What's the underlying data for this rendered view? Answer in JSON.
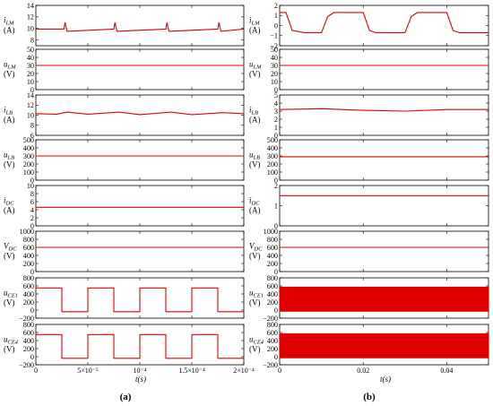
{
  "colors": {
    "signal": "#e00000",
    "axis": "#000000",
    "background": "#ffffff"
  },
  "panels": {
    "a": {
      "label": "(a)",
      "xlabel": "t(s)",
      "xticks": [
        "0",
        "5×10⁻⁵",
        "10⁻⁴",
        "1.5×10⁻⁴",
        "2×10⁻⁴"
      ]
    },
    "b": {
      "label": "(b)",
      "xlabel": "t(s)",
      "xticks": [
        "0",
        "0.02",
        "0.04"
      ]
    }
  },
  "chart_data": [
    {
      "type": "line",
      "panel": "a",
      "row": 0,
      "ylabel": "iLM",
      "yunit": "(A)",
      "ylim": [
        7,
        14
      ],
      "yticks": [
        8,
        10,
        12,
        14
      ],
      "xlim": [
        0,
        0.0002
      ],
      "series": [
        {
          "description_value": 9.9,
          "values": [
            [
              0,
              9.9
            ],
            [
              2.7e-05,
              9.9
            ],
            [
              2.8e-05,
              11.0
            ],
            [
              3e-05,
              9.5
            ],
            [
              7.5e-05,
              9.9
            ],
            [
              7.6e-05,
              11.0
            ],
            [
              7.8e-05,
              9.5
            ],
            [
              0.000125,
              9.9
            ],
            [
              0.000126,
              11.0
            ],
            [
              0.000128,
              9.5
            ],
            [
              0.000175,
              9.9
            ],
            [
              0.000176,
              11.0
            ],
            [
              0.000178,
              9.5
            ],
            [
              0.0002,
              9.9
            ]
          ]
        }
      ]
    },
    {
      "type": "line",
      "panel": "a",
      "row": 1,
      "ylabel": "uLM",
      "yunit": "(V)",
      "ylim": [
        0,
        50
      ],
      "yticks": [
        0,
        10,
        20,
        30,
        40,
        50
      ],
      "xlim": [
        0,
        0.0002
      ],
      "series": [
        {
          "values": [
            [
              0,
              30
            ],
            [
              0.0002,
              30
            ]
          ]
        }
      ]
    },
    {
      "type": "line",
      "panel": "a",
      "row": 2,
      "ylabel": "iLB",
      "yunit": "(A)",
      "ylim": [
        6,
        14
      ],
      "yticks": [
        6,
        8,
        10,
        12,
        14
      ],
      "xlim": [
        0,
        0.0002
      ],
      "series": [
        {
          "values": [
            [
              0,
              10.3
            ],
            [
              2e-05,
              10.2
            ],
            [
              3e-05,
              10.6
            ],
            [
              5e-05,
              10.2
            ],
            [
              8e-05,
              10.6
            ],
            [
              0.0001,
              10.1
            ],
            [
              0.00013,
              10.6
            ],
            [
              0.00015,
              10.1
            ],
            [
              0.00018,
              10.5
            ],
            [
              0.0002,
              10.3
            ]
          ]
        }
      ]
    },
    {
      "type": "line",
      "panel": "a",
      "row": 3,
      "ylabel": "uLB",
      "yunit": "(V)",
      "ylim": [
        0,
        500
      ],
      "yticks": [
        0,
        100,
        200,
        300,
        400,
        500
      ],
      "xlim": [
        0,
        0.0002
      ],
      "series": [
        {
          "values": [
            [
              0,
              300
            ],
            [
              0.0002,
              300
            ]
          ]
        }
      ]
    },
    {
      "type": "line",
      "panel": "a",
      "row": 4,
      "ylabel": "iDC",
      "yunit": "(A)",
      "ylim": [
        0,
        10
      ],
      "yticks": [
        0,
        2,
        4,
        6,
        8,
        10
      ],
      "xlim": [
        0,
        0.0002
      ],
      "series": [
        {
          "values": [
            [
              0,
              4.6
            ],
            [
              0.0002,
              4.6
            ]
          ]
        }
      ]
    },
    {
      "type": "line",
      "panel": "a",
      "row": 5,
      "ylabel": "VDC",
      "yunit": "(V)",
      "ylim": [
        0,
        1000
      ],
      "yticks": [
        0,
        200,
        400,
        600,
        800,
        1000
      ],
      "xlim": [
        0,
        0.0002
      ],
      "series": [
        {
          "values": [
            [
              0,
              600
            ],
            [
              0.0002,
              600
            ]
          ]
        }
      ]
    },
    {
      "type": "line",
      "panel": "a",
      "row": 6,
      "ylabel": "uCE1",
      "yunit": "(V)",
      "ylim": [
        -200,
        800
      ],
      "yticks": [
        -200,
        0,
        200,
        400,
        600,
        800
      ],
      "xlim": [
        0,
        0.0002
      ],
      "series": [
        {
          "values": [
            [
              0,
              550
            ],
            [
              2.5e-05,
              550
            ],
            [
              2.5e-05,
              -40
            ],
            [
              5e-05,
              -40
            ],
            [
              5e-05,
              550
            ],
            [
              7.5e-05,
              550
            ],
            [
              7.5e-05,
              -40
            ],
            [
              0.0001,
              -40
            ],
            [
              0.0001,
              550
            ],
            [
              0.000125,
              550
            ],
            [
              0.000125,
              -40
            ],
            [
              0.00015,
              -40
            ],
            [
              0.00015,
              550
            ],
            [
              0.000175,
              550
            ],
            [
              0.000175,
              -40
            ],
            [
              0.0002,
              -40
            ]
          ]
        }
      ]
    },
    {
      "type": "line",
      "panel": "a",
      "row": 7,
      "ylabel": "uCE4",
      "yunit": "(V)",
      "ylim": [
        -200,
        800
      ],
      "yticks": [
        -200,
        0,
        200,
        400,
        600,
        800
      ],
      "xlim": [
        0,
        0.0002
      ],
      "series": [
        {
          "values": [
            [
              0,
              550
            ],
            [
              2.5e-05,
              550
            ],
            [
              2.5e-05,
              -40
            ],
            [
              5e-05,
              -40
            ],
            [
              5e-05,
              550
            ],
            [
              7.5e-05,
              550
            ],
            [
              7.5e-05,
              -40
            ],
            [
              0.0001,
              -40
            ],
            [
              0.0001,
              550
            ],
            [
              0.000125,
              550
            ],
            [
              0.000125,
              -40
            ],
            [
              0.00015,
              -40
            ],
            [
              0.00015,
              550
            ],
            [
              0.000175,
              550
            ],
            [
              0.000175,
              -40
            ],
            [
              0.0002,
              -40
            ]
          ]
        }
      ]
    },
    {
      "type": "line",
      "panel": "b",
      "row": 0,
      "ylabel": "iLM",
      "yunit": "(A)",
      "ylim": [
        -2,
        2
      ],
      "yticks": [
        -2,
        -1,
        0,
        1,
        2
      ],
      "xlim": [
        0,
        0.05
      ],
      "series": [
        {
          "values": [
            [
              0,
              1.3
            ],
            [
              0.0015,
              1.3
            ],
            [
              0.003,
              -0.5
            ],
            [
              0.006,
              -0.7
            ],
            [
              0.01,
              -0.7
            ],
            [
              0.0115,
              0.9
            ],
            [
              0.013,
              1.3
            ],
            [
              0.02,
              1.3
            ],
            [
              0.0215,
              -0.5
            ],
            [
              0.023,
              -0.7
            ],
            [
              0.03,
              -0.7
            ],
            [
              0.0315,
              0.9
            ],
            [
              0.033,
              1.3
            ],
            [
              0.04,
              1.3
            ],
            [
              0.0415,
              -0.5
            ],
            [
              0.043,
              -0.7
            ],
            [
              0.05,
              -0.7
            ]
          ]
        }
      ]
    },
    {
      "type": "line",
      "panel": "b",
      "row": 1,
      "ylabel": "uLM",
      "yunit": "(V)",
      "ylim": [
        0,
        50
      ],
      "yticks": [
        0,
        10,
        20,
        30,
        40,
        50
      ],
      "xlim": [
        0,
        0.05
      ],
      "series": [
        {
          "values": [
            [
              0,
              30
            ],
            [
              0.05,
              30
            ]
          ]
        }
      ]
    },
    {
      "type": "line",
      "panel": "b",
      "row": 2,
      "ylabel": "iLB",
      "yunit": "(A)",
      "ylim": [
        0,
        5
      ],
      "yticks": [
        0,
        1,
        2,
        3,
        4,
        5
      ],
      "xlim": [
        0,
        0.05
      ],
      "series": [
        {
          "values": [
            [
              0,
              3.2
            ],
            [
              0.01,
              3.3
            ],
            [
              0.02,
              3.1
            ],
            [
              0.03,
              3.0
            ],
            [
              0.04,
              3.2
            ],
            [
              0.05,
              3.2
            ]
          ]
        }
      ]
    },
    {
      "type": "line",
      "panel": "b",
      "row": 3,
      "ylabel": "uLB",
      "yunit": "(V)",
      "ylim": [
        0,
        500
      ],
      "yticks": [
        0,
        100,
        200,
        300,
        400,
        500
      ],
      "xlim": [
        0,
        0.05
      ],
      "series": [
        {
          "values": [
            [
              0,
              290
            ],
            [
              0.05,
              290
            ]
          ]
        }
      ]
    },
    {
      "type": "line",
      "panel": "b",
      "row": 4,
      "ylabel": "iDC",
      "yunit": "(A)",
      "ylim": [
        0,
        2
      ],
      "yticks": [
        0,
        1,
        2
      ],
      "xlim": [
        0,
        0.05
      ],
      "series": [
        {
          "values": [
            [
              0,
              1.5
            ],
            [
              0.05,
              1.5
            ]
          ]
        }
      ]
    },
    {
      "type": "line",
      "panel": "b",
      "row": 5,
      "ylabel": "VDC",
      "yunit": "(V)",
      "ylim": [
        0,
        1000
      ],
      "yticks": [
        0,
        200,
        400,
        600,
        800,
        1000
      ],
      "xlim": [
        0,
        0.05
      ],
      "series": [
        {
          "values": [
            [
              0,
              600
            ],
            [
              0.05,
              600
            ]
          ]
        }
      ]
    },
    {
      "type": "area",
      "panel": "b",
      "row": 6,
      "ylabel": "uCE1",
      "yunit": "(V)",
      "ylim": [
        -200,
        800
      ],
      "yticks": [
        -200,
        0,
        200,
        400,
        600,
        800
      ],
      "xlim": [
        0,
        0.05
      ],
      "series": [
        {
          "values": [
            [
              0,
              -40
            ],
            [
              0,
              580
            ],
            [
              0.05,
              580
            ],
            [
              0.05,
              -40
            ]
          ]
        }
      ]
    },
    {
      "type": "area",
      "panel": "b",
      "row": 7,
      "ylabel": "uCE4",
      "yunit": "(V)",
      "ylim": [
        -200,
        800
      ],
      "yticks": [
        -200,
        0,
        200,
        400,
        600,
        800
      ],
      "xlim": [
        0,
        0.05
      ],
      "series": [
        {
          "values": [
            [
              0,
              -40
            ],
            [
              0,
              580
            ],
            [
              0.05,
              580
            ],
            [
              0.05,
              -40
            ]
          ]
        }
      ]
    }
  ]
}
